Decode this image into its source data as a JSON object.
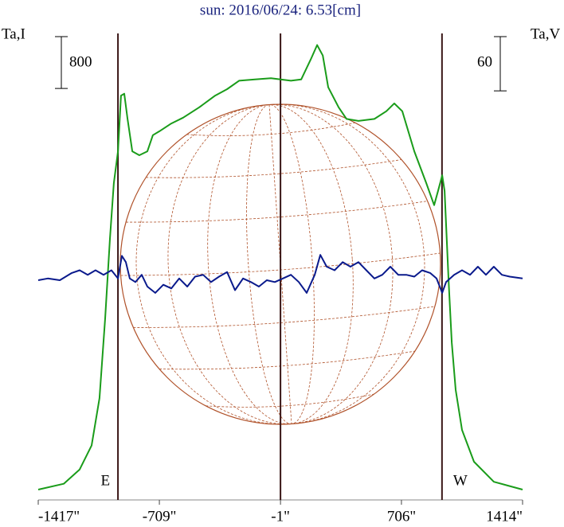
{
  "chart_data": {
    "type": "line",
    "title": "sun: 2016/06/24: 6.53[cm]",
    "y_label": "Ta,I",
    "y2_label": "Ta,V",
    "xlim": [
      -1417,
      1414
    ],
    "xticks": [
      {
        "value": -1417,
        "label": "-1417\""
      },
      {
        "value": -709,
        "label": "-709\""
      },
      {
        "value": -1,
        "label": "-1\""
      },
      {
        "value": 706,
        "label": "706\""
      },
      {
        "value": 1414,
        "label": "1414\""
      }
    ],
    "ylim": [
      0,
      7200
    ],
    "y2lim": [
      -245,
      271
    ],
    "scale_bars": {
      "y": 800,
      "y2": 60
    },
    "vlines": [
      {
        "value": -951,
        "label": "E"
      },
      {
        "value": -1
      },
      {
        "value": 943,
        "label": "W"
      }
    ],
    "series": [
      {
        "name": "Ta,I",
        "color": "#1a9c1a",
        "x": [
          -1417,
          -1268,
          -1175,
          -1105,
          -1059,
          -1026,
          -998,
          -975,
          -951,
          -933,
          -914,
          -895,
          -867,
          -826,
          -779,
          -747,
          -709,
          -639,
          -570,
          -476,
          -383,
          -313,
          -243,
          -150,
          -57,
          -1,
          60,
          120,
          176,
          213,
          246,
          278,
          339,
          385,
          455,
          548,
          618,
          664,
          711,
          781,
          851,
          897,
          920,
          944,
          958,
          981,
          1000,
          1023,
          1060,
          1130,
          1246,
          1414
        ],
        "values": [
          160,
          250,
          470,
          840,
          1570,
          2800,
          4030,
          4890,
          5380,
          6240,
          6270,
          5880,
          5380,
          5320,
          5380,
          5630,
          5690,
          5810,
          5900,
          6060,
          6240,
          6340,
          6470,
          6490,
          6510,
          6490,
          6470,
          6490,
          6800,
          7020,
          6860,
          6370,
          6060,
          5880,
          5850,
          5880,
          6000,
          6120,
          6000,
          5380,
          4890,
          4550,
          4770,
          5010,
          4770,
          3420,
          2430,
          1700,
          1080,
          590,
          280,
          160
        ]
      },
      {
        "name": "Ta,V",
        "color": "#0a1a8c",
        "axis": "y2",
        "x": [
          -1417,
          -1361,
          -1291,
          -1221,
          -1175,
          -1128,
          -1082,
          -1035,
          -989,
          -951,
          -928,
          -905,
          -882,
          -849,
          -812,
          -779,
          -733,
          -686,
          -639,
          -593,
          -546,
          -500,
          -453,
          -407,
          -360,
          -313,
          -267,
          -220,
          -174,
          -127,
          -81,
          -34,
          13,
          60,
          106,
          152,
          199,
          232,
          269,
          315,
          362,
          408,
          455,
          501,
          548,
          594,
          641,
          687,
          734,
          781,
          827,
          874,
          911,
          944,
          967,
          1014,
          1060,
          1107,
          1153,
          1200,
          1246,
          1293,
          1339,
          1414
        ],
        "values": [
          -2,
          0,
          -2,
          6,
          9,
          4,
          9,
          4,
          9,
          0,
          25,
          18,
          0,
          -4,
          4,
          -9,
          -16,
          -7,
          -11,
          0,
          -9,
          2,
          4,
          -4,
          2,
          7,
          -13,
          0,
          -4,
          -9,
          -2,
          -4,
          0,
          4,
          -4,
          -16,
          4,
          26,
          13,
          9,
          18,
          13,
          18,
          9,
          0,
          4,
          13,
          4,
          4,
          2,
          9,
          6,
          0,
          -16,
          -4,
          4,
          9,
          4,
          13,
          4,
          13,
          4,
          2,
          0
        ]
      }
    ]
  }
}
